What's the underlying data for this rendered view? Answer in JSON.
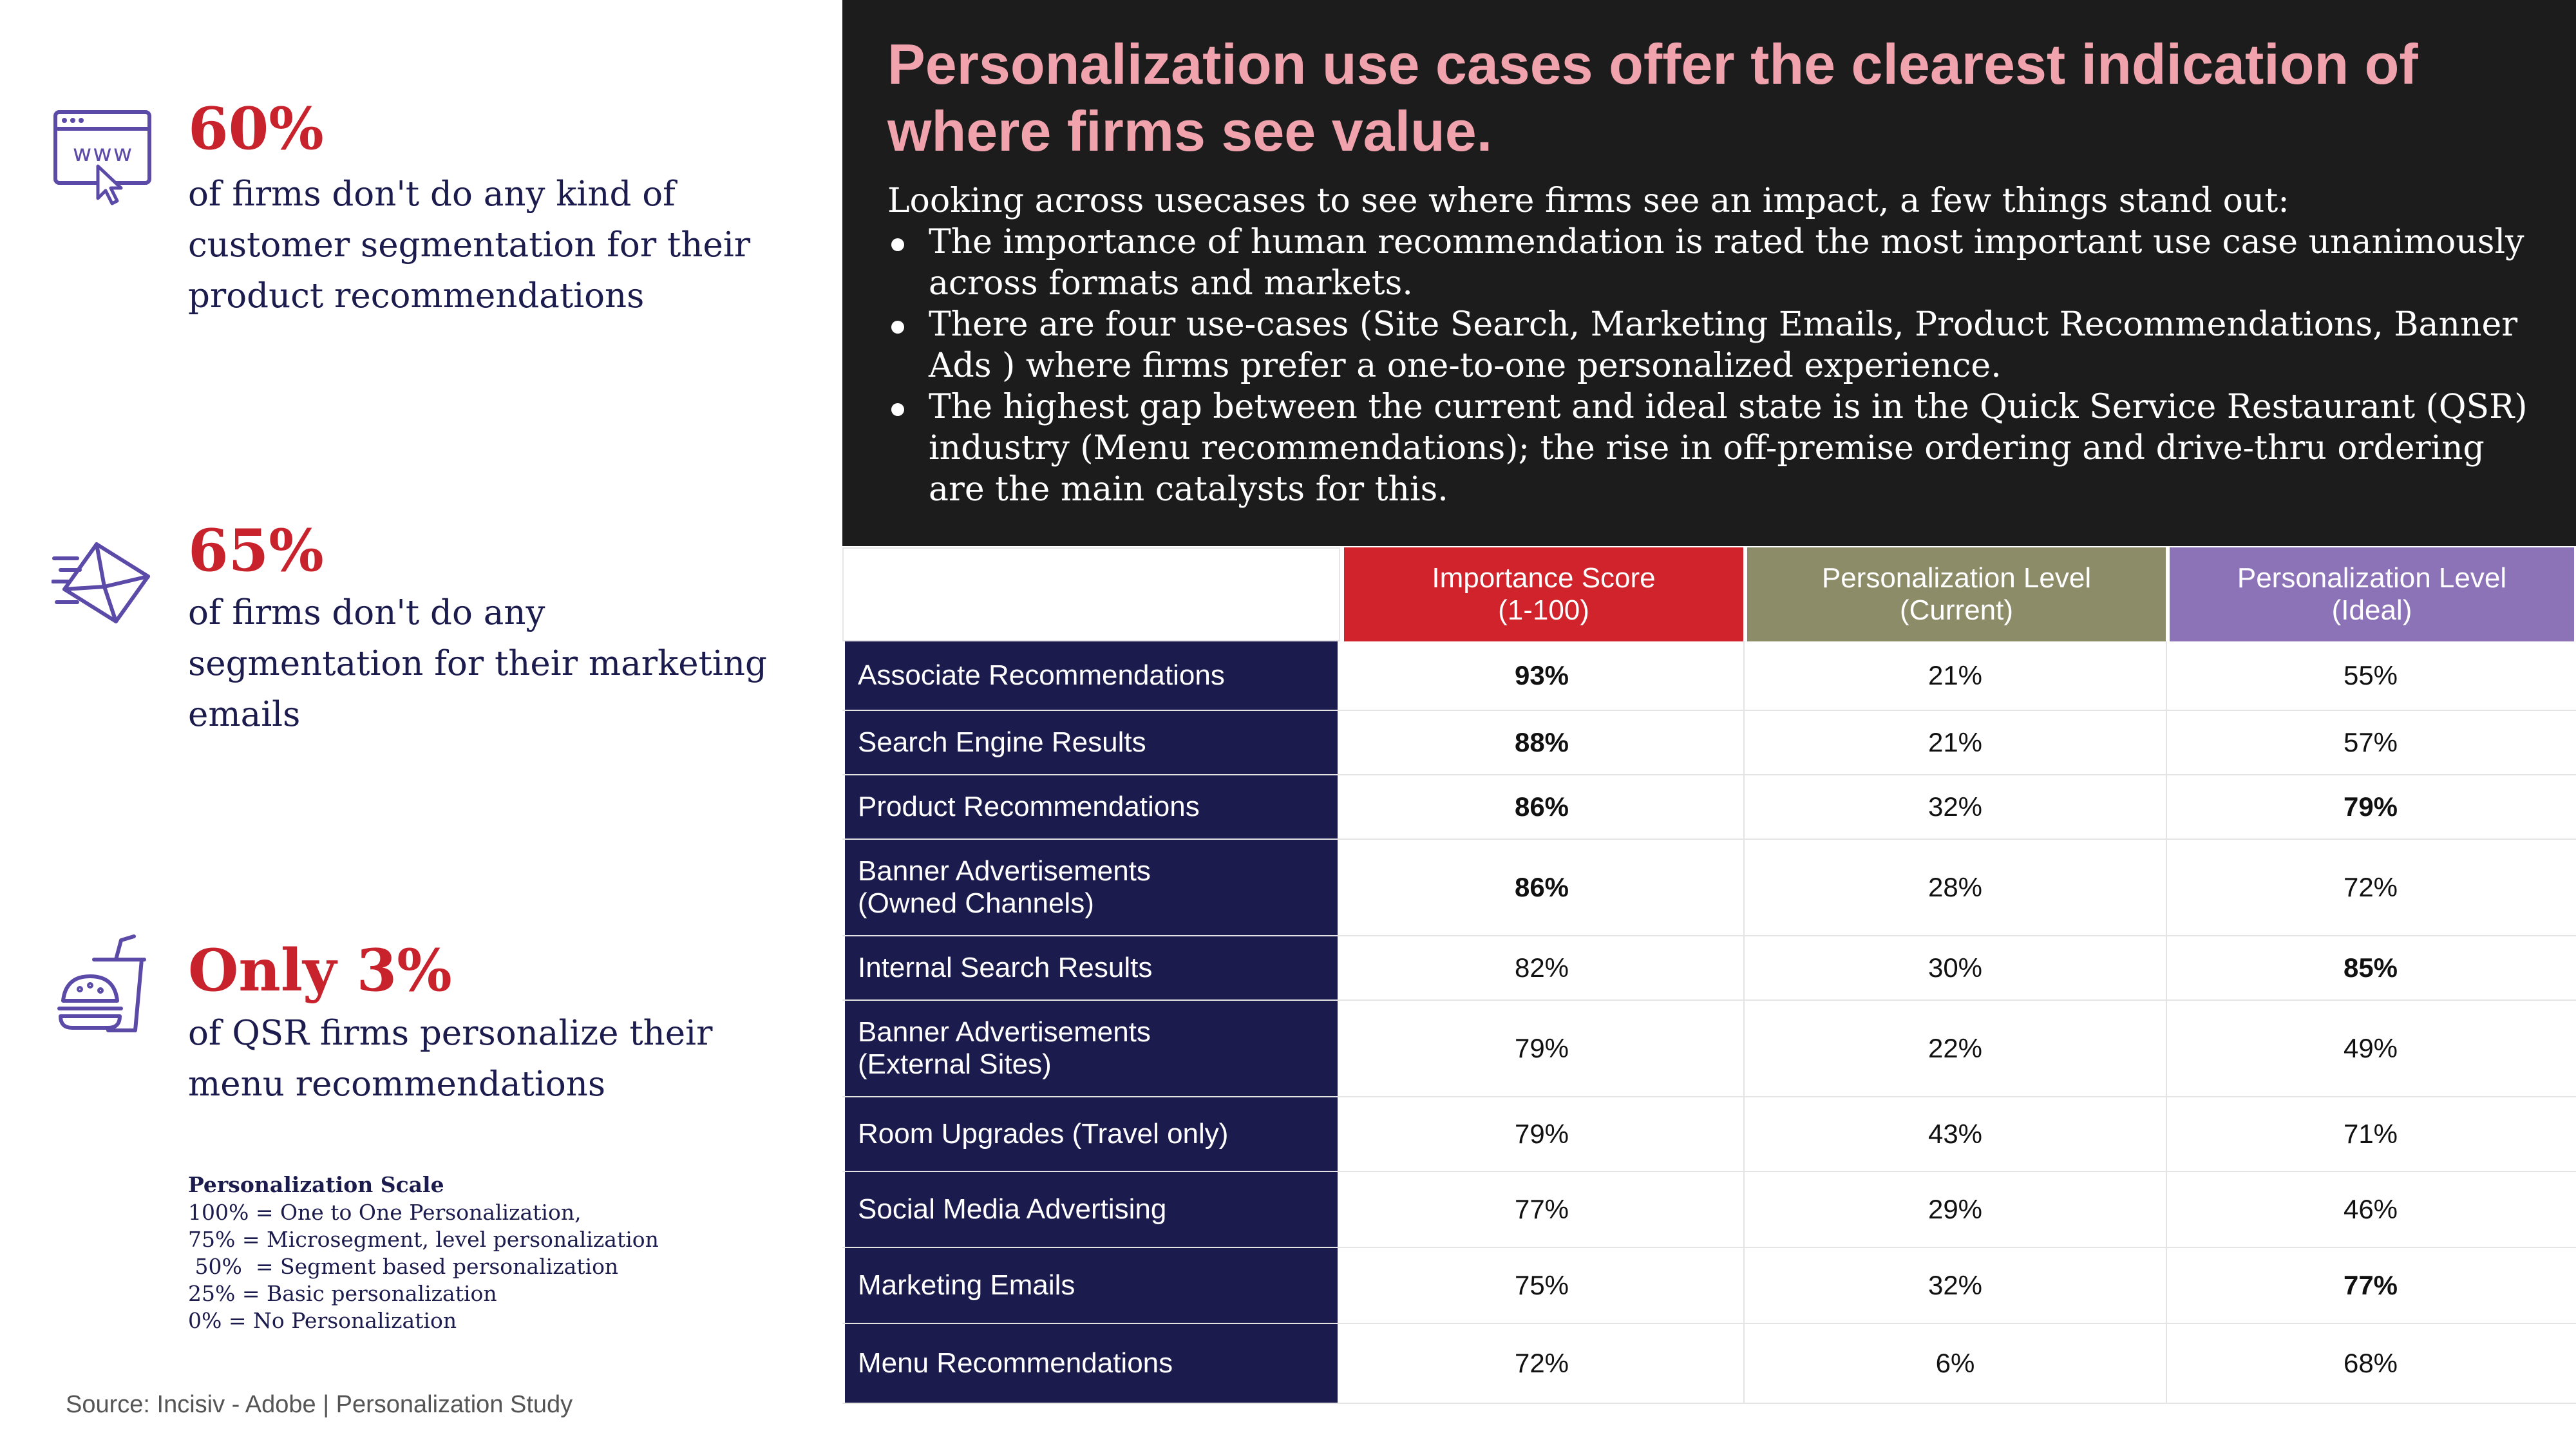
{
  "stats": [
    {
      "value": "60%",
      "icon": "web-browser-icon",
      "description": "of firms don't do any kind of customer segmentation for their product recommendations"
    },
    {
      "value": "65%",
      "icon": "send-email-icon",
      "description": "of firms don't do any segmentation for their marketing emails"
    },
    {
      "value": "Only 3%",
      "icon": "fast-food-icon",
      "description": "of QSR firms personalize their menu recommendations"
    }
  ],
  "scale": {
    "title": "Personalization Scale",
    "lines": [
      "100% = One to One Personalization,",
      "75% = Microsegment, level personalization",
      " 50%  = Segment based personalization",
      "25% = Basic personalization",
      "0% = No Personalization"
    ]
  },
  "source": "Source: Incisiv - Adobe | Personalization Study",
  "headline": "Personalization use cases offer the clearest indication of where firms see value.",
  "intro": "Looking across usecases to see where firms see an impact, a few things stand out:",
  "bullets": [
    "The importance of human recommendation is rated the most important use case unanimously across formats and markets.",
    "There are four use-cases (Site Search, Marketing Emails, Product Recommendations, Banner Ads ) where firms prefer a one-to-one personalized experience.",
    "The highest gap between the current and ideal state is in the Quick Service Restaurant (QSR) industry (Menu recommendations); the rise in off-premise ordering and drive-thru ordering are the main catalysts for this."
  ],
  "table": {
    "headers": {
      "importance": "Importance Score\n(1-100)",
      "current": "Personalization Level\n(Current)",
      "ideal": "Personalization Level\n(Ideal)"
    },
    "colors": {
      "importance": "#d0232b",
      "current": "#8d8c68",
      "ideal": "#8c73b8",
      "label_bg": "#1c1b4d"
    },
    "rows": [
      {
        "label": "Associate Recommendations",
        "importance": "93%",
        "current": "21%",
        "ideal": "55%",
        "bold": [
          "importance"
        ]
      },
      {
        "label": "Search Engine Results",
        "importance": "88%",
        "current": "21%",
        "ideal": "57%",
        "bold": [
          "importance"
        ]
      },
      {
        "label": "Product Recommendations",
        "importance": "86%",
        "current": "32%",
        "ideal": "79%",
        "bold": [
          "importance",
          "ideal"
        ]
      },
      {
        "label": "Banner Advertisements\n(Owned Channels)",
        "importance": "86%",
        "current": "28%",
        "ideal": "72%",
        "bold": [
          "importance"
        ]
      },
      {
        "label": "Internal Search Results",
        "importance": "82%",
        "current": "30%",
        "ideal": "85%",
        "bold": [
          "ideal"
        ]
      },
      {
        "label": "Banner Advertisements\n(External Sites)",
        "importance": "79%",
        "current": "22%",
        "ideal": "49%",
        "bold": []
      },
      {
        "label": "Room Upgrades  (Travel only)",
        "importance": "79%",
        "current": "43%",
        "ideal": "71%",
        "bold": []
      },
      {
        "label": "Social Media Advertising",
        "importance": "77%",
        "current": "29%",
        "ideal": "46%",
        "bold": []
      },
      {
        "label": "Marketing Emails",
        "importance": "75%",
        "current": "32%",
        "ideal": "77%",
        "bold": [
          "ideal"
        ]
      },
      {
        "label": "Menu Recommendations",
        "importance": "72%",
        "current": "6%",
        "ideal": "68%",
        "bold": []
      }
    ]
  }
}
